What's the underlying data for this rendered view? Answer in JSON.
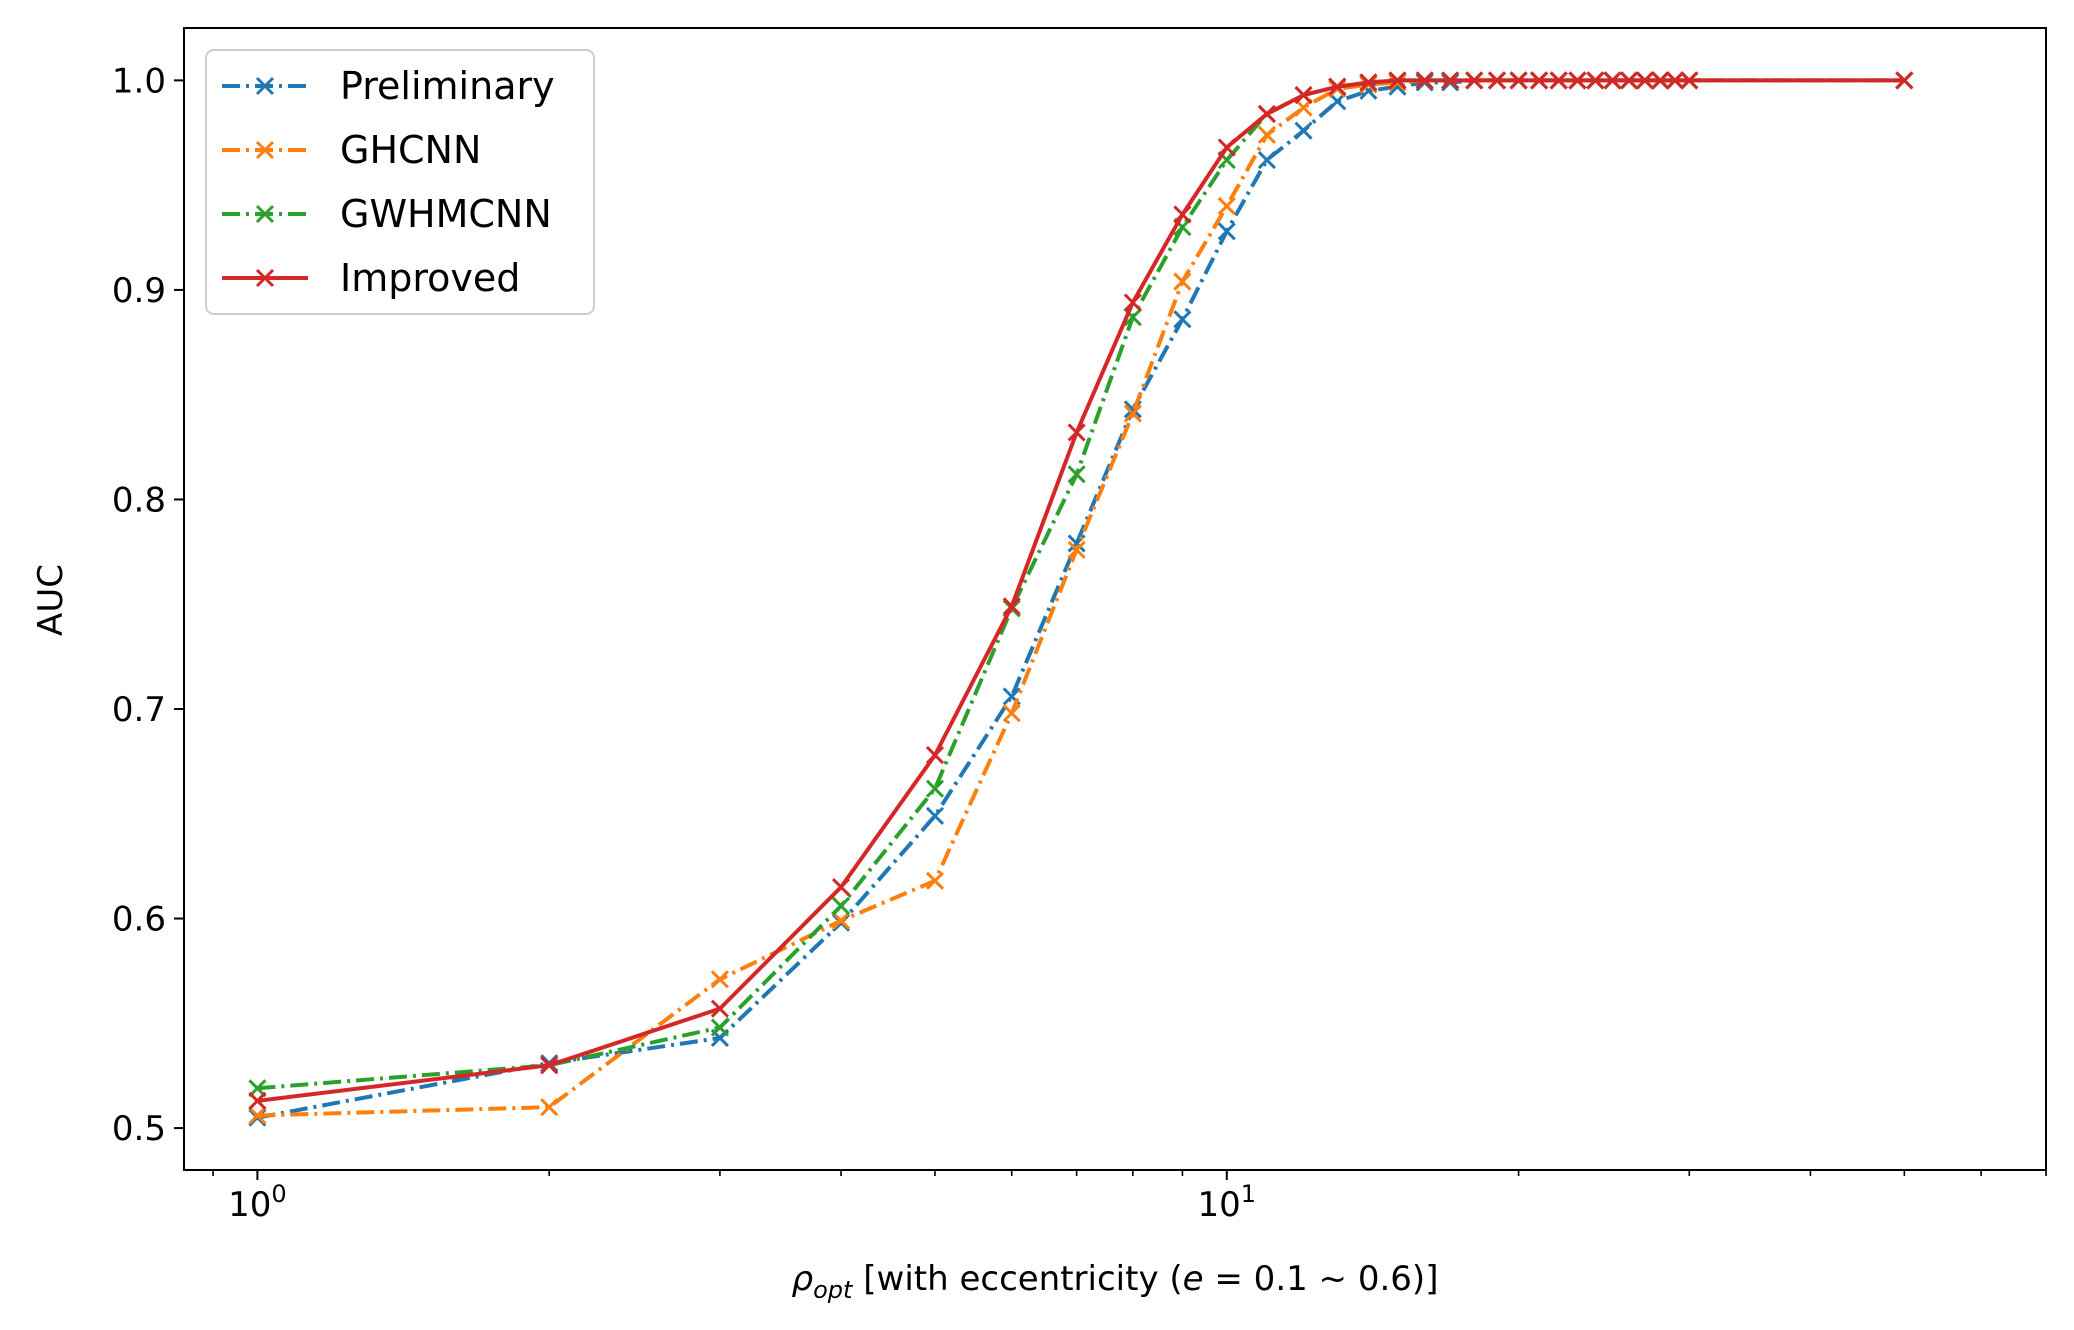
{
  "chart_data": {
    "type": "line",
    "x_scale": "log",
    "xlim": [
      0.84,
      70
    ],
    "ylim": [
      0.48,
      1.025
    ],
    "ylabel": "AUC",
    "xlabel": {
      "rho": "ρ",
      "sub": "opt",
      "middle": " [with eccentricity (",
      "e": "e",
      "tail": " = 0.1 ~ 0.6)]"
    },
    "x_ticks": [
      {
        "value": 1,
        "base": "10",
        "exp": "0"
      },
      {
        "value": 10,
        "base": "10",
        "exp": "1"
      }
    ],
    "y_ticks": [
      {
        "value": 0.5,
        "label": "0.5"
      },
      {
        "value": 0.6,
        "label": "0.6"
      },
      {
        "value": 0.7,
        "label": "0.7"
      },
      {
        "value": 0.8,
        "label": "0.8"
      },
      {
        "value": 0.9,
        "label": "0.9"
      },
      {
        "value": 1.0,
        "label": "1.0"
      }
    ],
    "legend_position": "top-left",
    "x": [
      1,
      2,
      3,
      4,
      5,
      6,
      7,
      8,
      9,
      10,
      11,
      12,
      13,
      14,
      15,
      16,
      17,
      18,
      19,
      20,
      21,
      22,
      23,
      24,
      25,
      26,
      27,
      28,
      29,
      30,
      50
    ],
    "series": [
      {
        "name": "Preliminary",
        "color": "#1f77b4",
        "linestyle": "dashdot",
        "values": [
          0.505,
          0.531,
          0.543,
          0.598,
          0.649,
          0.706,
          0.779,
          0.843,
          0.886,
          0.928,
          0.962,
          0.976,
          0.99,
          0.995,
          0.997,
          0.999,
          0.999,
          1.0,
          1.0,
          1.0,
          1.0,
          1.0,
          1.0,
          1.0,
          1.0,
          1.0,
          1.0,
          1.0,
          1.0,
          1.0,
          1.0
        ]
      },
      {
        "name": "GHCNN",
        "color": "#ff7f0e",
        "linestyle": "dashdot",
        "values": [
          0.506,
          0.51,
          0.571,
          0.599,
          0.618,
          0.698,
          0.776,
          0.841,
          0.904,
          0.94,
          0.974,
          0.987,
          0.996,
          0.998,
          0.999,
          1.0,
          1.0,
          1.0,
          1.0,
          1.0,
          1.0,
          1.0,
          1.0,
          1.0,
          1.0,
          1.0,
          1.0,
          1.0,
          1.0,
          1.0,
          1.0
        ]
      },
      {
        "name": "GWHMCNN",
        "color": "#2ca02c",
        "linestyle": "dashdot",
        "values": [
          0.519,
          0.53,
          0.548,
          0.606,
          0.662,
          0.748,
          0.812,
          0.887,
          0.93,
          0.962,
          0.984,
          0.993,
          0.997,
          0.999,
          1.0,
          1.0,
          1.0,
          1.0,
          1.0,
          1.0,
          1.0,
          1.0,
          1.0,
          1.0,
          1.0,
          1.0,
          1.0,
          1.0,
          1.0,
          1.0,
          1.0
        ]
      },
      {
        "name": "Improved",
        "color": "#d62728",
        "linestyle": "solid",
        "values": [
          0.513,
          0.53,
          0.557,
          0.615,
          0.678,
          0.749,
          0.832,
          0.894,
          0.936,
          0.968,
          0.984,
          0.993,
          0.997,
          0.999,
          1.0,
          1.0,
          1.0,
          1.0,
          1.0,
          1.0,
          1.0,
          1.0,
          1.0,
          1.0,
          1.0,
          1.0,
          1.0,
          1.0,
          1.0,
          1.0,
          1.0
        ]
      }
    ]
  }
}
